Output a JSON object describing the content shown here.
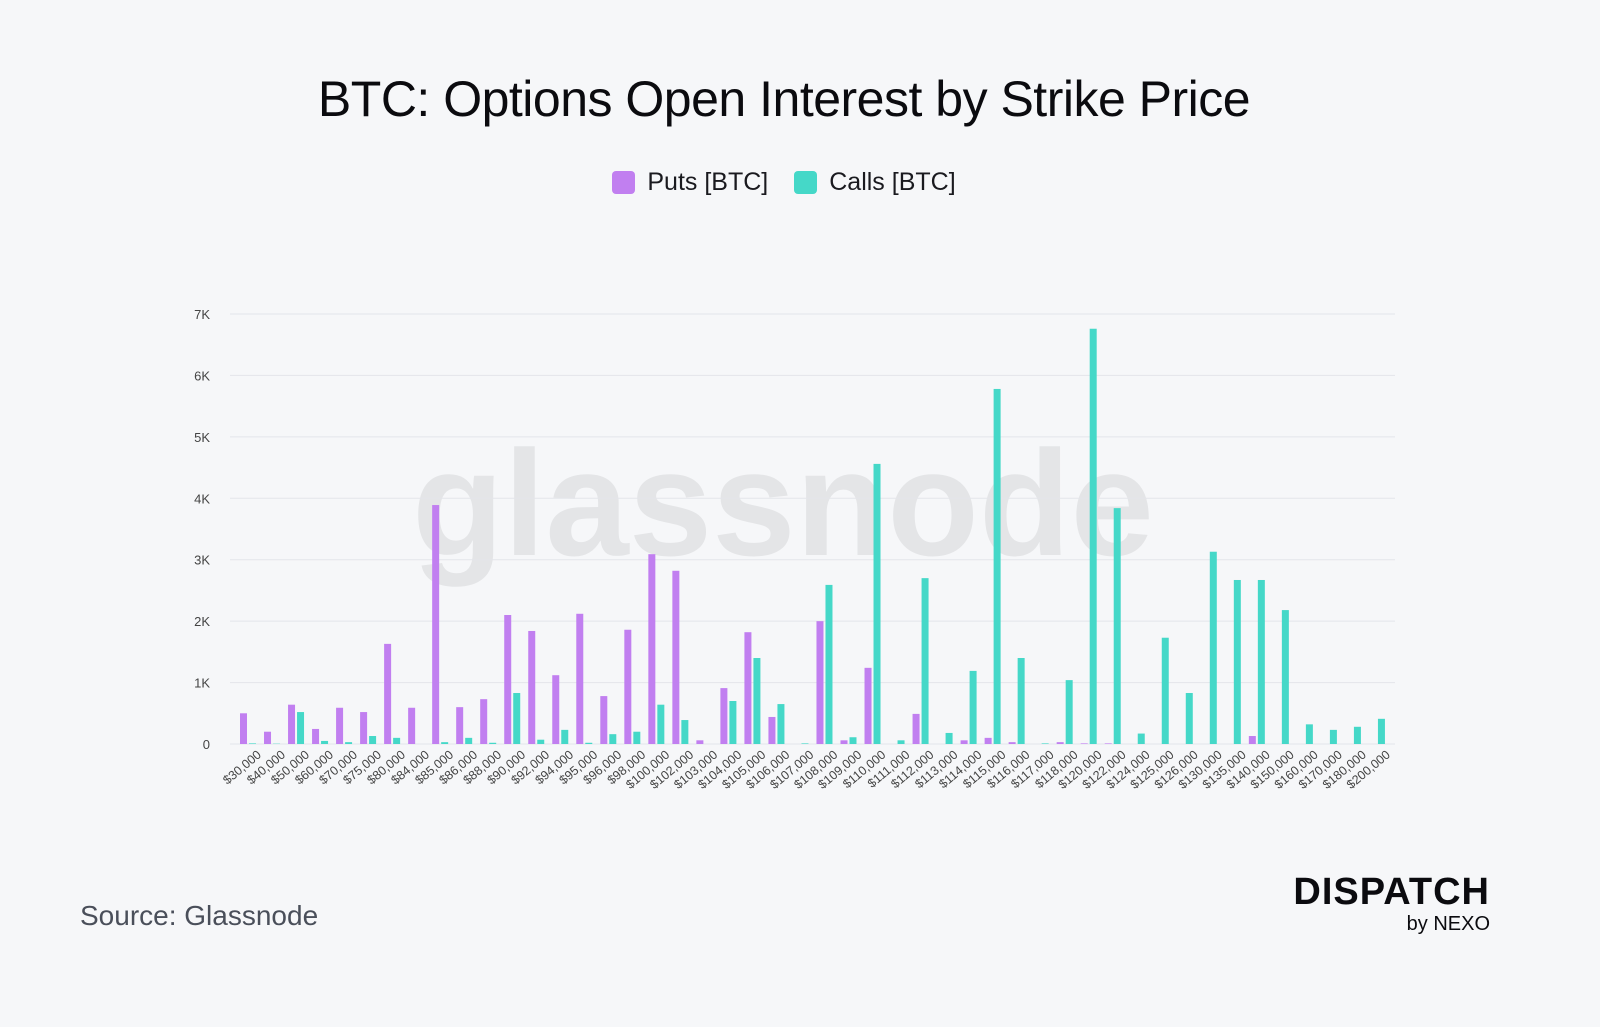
{
  "chart_data": {
    "type": "bar",
    "title": "BTC: Options Open Interest by Strike Price",
    "xlabel": "",
    "ylabel": "",
    "ylim": [
      0,
      7000
    ],
    "yticks": [
      0,
      1000,
      2000,
      3000,
      4000,
      5000,
      6000,
      7000
    ],
    "ytick_labels": [
      "0",
      "1K",
      "2K",
      "3K",
      "4K",
      "5K",
      "6K",
      "7K"
    ],
    "grid": true,
    "legend_position": "top-center",
    "watermark": "glassnode",
    "categories": [
      "$30,000",
      "$40,000",
      "$50,000",
      "$60,000",
      "$70,000",
      "$75,000",
      "$80,000",
      "$84,000",
      "$85,000",
      "$86,000",
      "$88,000",
      "$90,000",
      "$92,000",
      "$94,000",
      "$95,000",
      "$96,000",
      "$98,000",
      "$100,000",
      "$102,000",
      "$103,000",
      "$104,000",
      "$105,000",
      "$106,000",
      "$107,000",
      "$108,000",
      "$109,000",
      "$110,000",
      "$111,000",
      "$112,000",
      "$113,000",
      "$114,000",
      "$115,000",
      "$116,000",
      "$117,000",
      "$118,000",
      "$120,000",
      "$122,000",
      "$124,000",
      "$125,000",
      "$126,000",
      "$130,000",
      "$135,000",
      "$140,000",
      "$150,000",
      "$160,000",
      "$170,000",
      "$180,000",
      "$200,000"
    ],
    "series": [
      {
        "name": "Puts [BTC]",
        "color": "#c17ff0",
        "values": [
          500,
          200,
          640,
          245,
          590,
          520,
          1630,
          590,
          3890,
          600,
          730,
          2100,
          1840,
          1120,
          2120,
          780,
          1860,
          3090,
          2820,
          60,
          910,
          1820,
          440,
          0,
          2000,
          60,
          1240,
          0,
          490,
          0,
          60,
          100,
          30,
          0,
          30,
          10,
          10,
          0,
          0,
          0,
          0,
          0,
          130,
          0,
          0,
          0,
          0,
          0
        ]
      },
      {
        "name": "Calls [BTC]",
        "color": "#45d8c8",
        "values": [
          10,
          5,
          520,
          50,
          30,
          130,
          100,
          0,
          30,
          100,
          20,
          830,
          70,
          230,
          20,
          160,
          200,
          640,
          390,
          0,
          700,
          1400,
          650,
          10,
          2590,
          110,
          4560,
          60,
          2700,
          180,
          1190,
          5780,
          1400,
          10,
          1040,
          6760,
          3840,
          170,
          1730,
          830,
          3130,
          2670,
          2670,
          2180,
          320,
          230,
          280,
          410
        ]
      }
    ]
  },
  "footer": {
    "source": "Source: Glassnode"
  },
  "logo": {
    "line1": "DISPATCH",
    "line2": "by NEXO"
  }
}
